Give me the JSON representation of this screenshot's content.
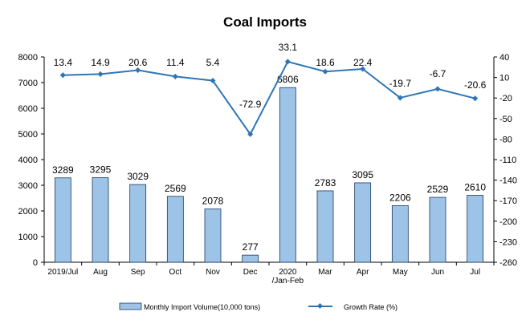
{
  "chart_data": {
    "type": "bar",
    "title": "Coal Imports",
    "categories": [
      "2019/Jul",
      "Aug",
      "Sep",
      "Oct",
      "Nov",
      "Dec",
      "2020\n/Jan-Feb",
      "Mar",
      "Apr",
      "May",
      "Jun",
      "Jul"
    ],
    "series": [
      {
        "name": "Monthly Import Volume(10,000 tons)",
        "type": "bar",
        "axis": "left",
        "values": [
          3289,
          3295,
          3029,
          2569,
          2078,
          277,
          6806,
          2783,
          3095,
          2206,
          2529,
          2610
        ],
        "labels": [
          "3289",
          "3295",
          "3029",
          "2569",
          "2078",
          "277",
          "6806",
          "2783",
          "3095",
          "2206",
          "2529",
          "2610"
        ]
      },
      {
        "name": "Growth Rate (%)",
        "type": "line",
        "axis": "right",
        "values": [
          13.4,
          14.9,
          20.6,
          11.4,
          5.4,
          -72.9,
          33.1,
          18.6,
          22.4,
          -19.7,
          -6.7,
          -20.6
        ],
        "labels": [
          "13.4",
          "14.9",
          "20.6",
          "11.4",
          "5.4",
          "-72.9",
          "33.1",
          "18.6",
          "22.4",
          "-19.7",
          "-6.7",
          "-20.6"
        ]
      }
    ],
    "y_left": {
      "min": 0,
      "max": 8000,
      "ticks": [
        "0",
        "1000",
        "2000",
        "3000",
        "4000",
        "5000",
        "6000",
        "7000",
        "8000"
      ]
    },
    "y_right": {
      "min": -260,
      "max": 40,
      "ticks": [
        "40",
        "10",
        "-20",
        "-50",
        "-80",
        "-110",
        "-140",
        "-170",
        "-200",
        "-230",
        "-260"
      ]
    },
    "grid": false,
    "legend": "bottom",
    "colors": {
      "bar_fill": "#9dc3e6",
      "bar_stroke": "#1f3864",
      "line": "#2e75b6",
      "axis": "#000000"
    }
  }
}
